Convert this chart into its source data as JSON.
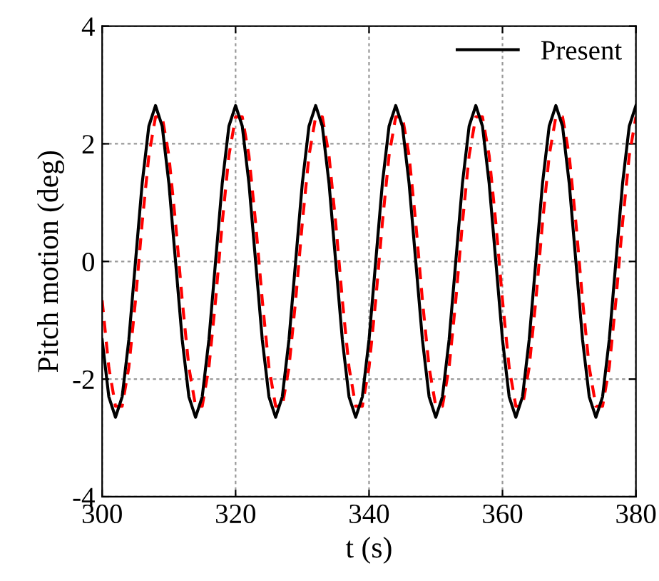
{
  "chart_data": {
    "type": "line",
    "xlabel": "t (s)",
    "ylabel": "Pitch motion (deg)",
    "x": [
      300,
      301,
      302,
      303,
      304,
      305,
      306,
      307,
      308,
      309,
      310,
      311,
      312,
      313,
      314,
      315,
      316,
      317,
      318,
      319,
      320,
      321,
      322,
      323,
      324,
      325,
      326,
      327,
      328,
      329,
      330,
      331,
      332,
      333,
      334,
      335,
      336,
      337,
      338,
      339,
      340,
      341,
      342,
      343,
      344,
      345,
      346,
      347,
      348,
      349,
      350,
      351,
      352,
      353,
      354,
      355,
      356,
      357,
      358,
      359,
      360,
      361,
      362,
      363,
      364,
      365,
      366,
      367,
      368,
      369,
      370,
      371,
      372,
      373,
      374,
      375,
      376,
      377,
      378,
      379,
      380
    ],
    "series": [
      {
        "color": "#ff0000",
        "line_style": "dashed",
        "values": [
          -0.66,
          -1.8,
          -2.46,
          -2.46,
          -1.8,
          -0.66,
          0.66,
          1.8,
          2.46,
          2.46,
          1.8,
          0.66,
          -0.66,
          -1.8,
          -2.46,
          -2.46,
          -1.8,
          -0.66,
          0.66,
          1.8,
          2.46,
          2.46,
          1.8,
          0.66,
          -0.66,
          -1.8,
          -2.46,
          -2.46,
          -1.8,
          -0.66,
          0.66,
          1.8,
          2.46,
          2.46,
          1.8,
          0.66,
          -0.66,
          -1.8,
          -2.46,
          -2.46,
          -1.8,
          -0.66,
          0.66,
          1.8,
          2.46,
          2.46,
          1.8,
          0.66,
          -0.66,
          -1.8,
          -2.46,
          -2.46,
          -1.8,
          -0.66,
          0.66,
          1.8,
          2.46,
          2.46,
          1.8,
          0.66,
          -0.66,
          -1.8,
          -2.46,
          -2.46,
          -1.8,
          -0.66,
          0.66,
          1.8,
          2.46,
          2.46,
          1.8,
          0.66,
          -0.66,
          -1.8,
          -2.46,
          -2.46,
          -1.8,
          -0.66,
          0.66,
          1.8,
          2.46
        ]
      },
      {
        "name": "Present",
        "color": "#000000",
        "line_style": "solid",
        "values": [
          -1.33,
          -2.3,
          -2.65,
          -2.3,
          -1.33,
          0,
          1.33,
          2.3,
          2.65,
          2.3,
          1.33,
          0,
          -1.33,
          -2.3,
          -2.65,
          -2.3,
          -1.33,
          0,
          1.33,
          2.3,
          2.65,
          2.3,
          1.33,
          0,
          -1.33,
          -2.3,
          -2.65,
          -2.3,
          -1.33,
          0,
          1.33,
          2.3,
          2.65,
          2.3,
          1.33,
          0,
          -1.33,
          -2.3,
          -2.65,
          -2.3,
          -1.33,
          0,
          1.33,
          2.3,
          2.65,
          2.3,
          1.33,
          0,
          -1.33,
          -2.3,
          -2.65,
          -2.3,
          -1.33,
          0,
          1.33,
          2.3,
          2.65,
          2.3,
          1.33,
          0,
          -1.33,
          -2.3,
          -2.65,
          -2.3,
          -1.33,
          0,
          1.33,
          2.3,
          2.65,
          2.3,
          1.33,
          0,
          -1.33,
          -2.3,
          -2.65,
          -2.3,
          -1.33,
          0,
          1.33,
          2.3,
          2.65
        ]
      }
    ],
    "xlim": [
      300,
      380
    ],
    "xticks": [
      300,
      320,
      340,
      360,
      380
    ],
    "ylim": [
      -4,
      4
    ],
    "yticks": [
      -4,
      -2,
      0,
      2,
      4
    ],
    "grid": true,
    "legend": "top right",
    "marker": "none"
  }
}
